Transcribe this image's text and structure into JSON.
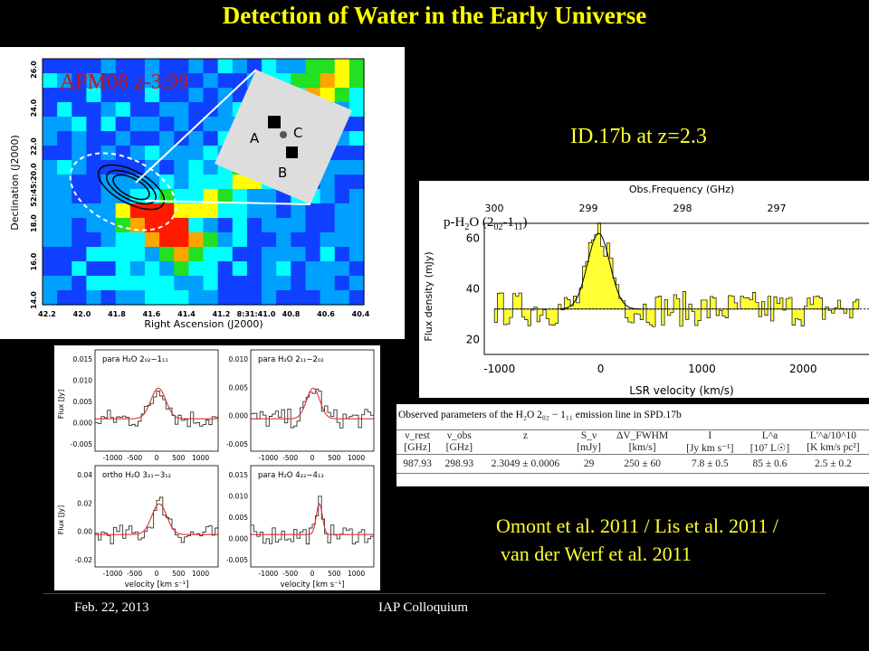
{
  "title": "Detection of Water in the Early Universe",
  "map": {
    "label": "APM08 z-3.99",
    "xlabel": "Right Ascension (J2000)",
    "ylabel": "Declination (J2000)",
    "xticks": [
      "42.2",
      "42.0",
      "41.8",
      "41.6",
      "41.4",
      "41.2",
      "8:31:41.0",
      "40.8",
      "40.6",
      "40.4"
    ],
    "yticks": [
      "14.0",
      "16.0",
      "18.0",
      "52:45:20.0",
      "22.0",
      "24.0",
      "26.0"
    ],
    "inset_labels": [
      "A",
      "B",
      "C"
    ]
  },
  "id_label": "ID.17b at z=2.3",
  "spectrum": {
    "top_axis_label": "Obs.Frequency (GHz)",
    "top_ticks": [
      "300",
      "299",
      "298",
      "297"
    ],
    "xlabel": "LSR velocity (km/s)",
    "ylabel": "Flux density (mJy)",
    "xticks": [
      "-1000",
      "0",
      "1000",
      "2000"
    ],
    "yticks": [
      "20",
      "40",
      "60"
    ],
    "line_label": "p-H",
    "line_label_sub": "2",
    "line_label_rest": "O (2",
    "sub1": "02",
    "dash": "-1",
    "sub2": "11",
    "close": ")"
  },
  "table": {
    "caption": "Observed parameters of the H₂O 2₀₂ − 1₁₁ emission line in SPD.17b",
    "headers": [
      "ν_rest",
      "ν_obs",
      "z",
      "S_ν",
      "ΔV_FWHM",
      "I",
      "L^a",
      "L'^a/10^10"
    ],
    "units": [
      "[GHz]",
      "[GHz]",
      "",
      "[mJy]",
      "[km/s]",
      "[Jy km s⁻¹]",
      "[10⁷ L☉]",
      "[K km/s pc²]"
    ],
    "row": [
      "987.93",
      "298.93",
      "2.3049 ± 0.0006",
      "29",
      "250 ± 60",
      "7.8 ± 0.5",
      "85 ± 0.6",
      "2.5 ± 0.2"
    ]
  },
  "panels": [
    {
      "label": "para H₂O 2₀₂−1₁₁",
      "yticks": [
        "-0.005",
        "0.000",
        "0.005",
        "0.010",
        "0.015"
      ]
    },
    {
      "label": "para H₂O 2₁₁−2₀₂",
      "yticks": [
        "-0.005",
        "0.000",
        "0.005",
        "0.010"
      ]
    },
    {
      "label": "ortho H₂O 3₂₁−3₁₂",
      "yticks": [
        "-0.02",
        "0.00",
        "0.02",
        "0.04"
      ]
    },
    {
      "label": "para H₂O 4₂₂−4₁₃",
      "yticks": [
        "-0.005",
        "0.000",
        "0.005",
        "0.010",
        "0.015"
      ]
    }
  ],
  "panel_xticks": [
    "-1000",
    "-500",
    "0",
    "500",
    "1000"
  ],
  "panel_ylabel": "Flux [Jy]",
  "panel_xlabel": "velocity [km s⁻¹]",
  "citation1": "Omont et al. 2011 / Lis et al. 2011 /",
  "citation2": "van der Werf et al. 2011",
  "footer": {
    "date": "Feb. 22, 2013",
    "event": "IAP Colloquium"
  },
  "colors": {
    "title": "#ffff00",
    "spectrum_fill": "#ffff33",
    "fit": "#e03030",
    "background": "#000000"
  }
}
